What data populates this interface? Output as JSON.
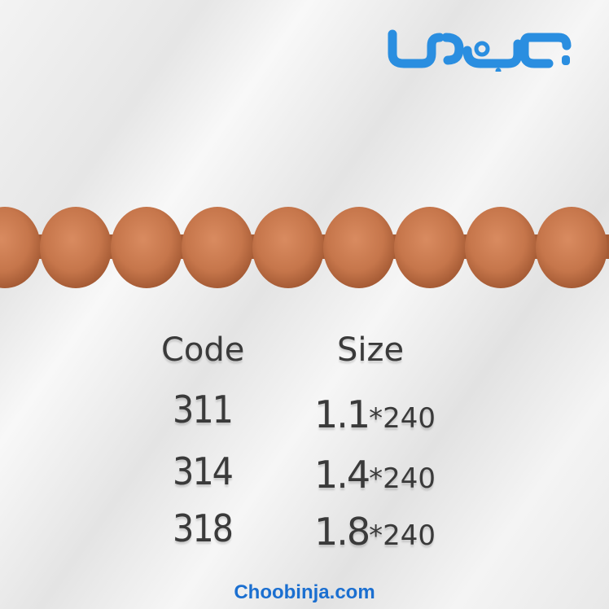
{
  "logo": {
    "text": "چوبینجا",
    "color": "#2a8ee0"
  },
  "product": {
    "material_color": "#c97a50",
    "bead_count": 9
  },
  "table": {
    "headers": {
      "code": "Code",
      "size": "Size"
    },
    "rows": [
      {
        "code": "311",
        "size_main": "1.1",
        "size_tail": "*240"
      },
      {
        "code": "314",
        "size_main": "1.4",
        "size_tail": "*240"
      },
      {
        "code": "318",
        "size_main": "1.8",
        "size_tail": "*240"
      }
    ]
  },
  "footer": {
    "website": "Choobinja.com"
  }
}
